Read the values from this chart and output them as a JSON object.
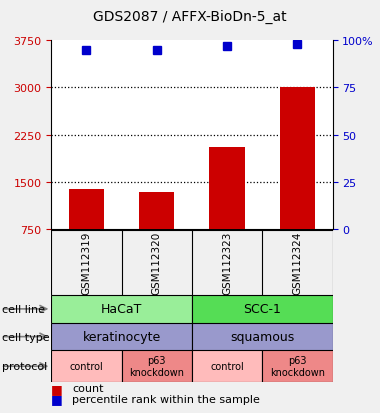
{
  "title": "GDS2087 / AFFX-BioDn-5_at",
  "samples": [
    "GSM112319",
    "GSM112320",
    "GSM112323",
    "GSM112324"
  ],
  "bar_values": [
    1390,
    1340,
    2050,
    3010
  ],
  "percentile_values": [
    95,
    95,
    97,
    98
  ],
  "bar_color": "#cc0000",
  "dot_color": "#0000cc",
  "ylim_left": [
    750,
    3750
  ],
  "ylim_right": [
    0,
    100
  ],
  "yticks_left": [
    750,
    1500,
    2250,
    3000,
    3750
  ],
  "ytick_labels_left": [
    "750",
    "1500",
    "2250",
    "3000",
    "3750"
  ],
  "yticks_right": [
    0,
    25,
    50,
    75,
    100
  ],
  "ytick_labels_right": [
    "0",
    "25",
    "50",
    "75",
    "100%"
  ],
  "cell_line_labels": [
    "HaCaT",
    "SCC-1"
  ],
  "cell_line_colors": [
    "#99ee99",
    "#55dd55"
  ],
  "cell_type_labels": [
    "keratinocyte",
    "squamous"
  ],
  "cell_type_color": "#9999cc",
  "protocol_labels": [
    "control",
    "p63\nknockdown",
    "control",
    "p63\nknockdown"
  ],
  "protocol_colors": [
    "#ffbbbb",
    "#ee8888",
    "#ffbbbb",
    "#ee8888"
  ],
  "legend_bar_label": "count",
  "legend_dot_label": "percentile rank within the sample",
  "left_axis_color": "#cc0000",
  "right_axis_color": "#0000cc",
  "bg_color": "#f0f0f0",
  "plot_bg": "#ffffff",
  "sample_bg": "#cccccc",
  "dotted_grid_values": [
    1500,
    2250,
    3000
  ],
  "bar_bottom": 750,
  "bar_width": 0.5
}
